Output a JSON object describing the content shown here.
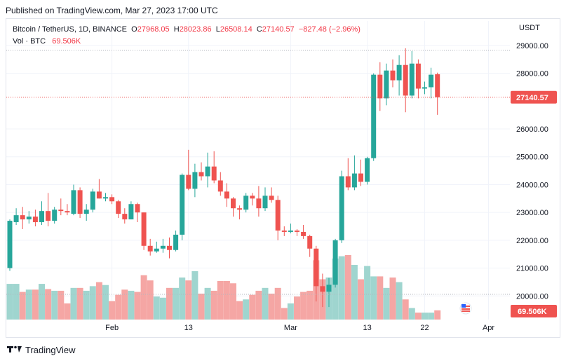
{
  "header": {
    "published": "Published on TradingView.com, Mar 27, 2023 17:00 UTC"
  },
  "legend": {
    "symbol": "Bitcoin / TetherUS, 1D, BINANCE",
    "o_label": "O",
    "o_value": "27968.05",
    "h_label": "H",
    "h_value": "28023.86",
    "l_label": "L",
    "l_value": "26508.14",
    "c_label": "C",
    "c_value": "27140.57",
    "change": "−827.48 (−2.96%)",
    "vol_label": "Vol · BTC",
    "vol_value": "69.506K"
  },
  "axis": {
    "currency": "USDT"
  },
  "footer": {
    "brand": "TradingView"
  },
  "colors": {
    "up": "#26a69a",
    "down": "#ef5350",
    "up_vol": "#9fd5cf",
    "down_vol": "#f5a6a4",
    "price_line": "#ef5350",
    "grid": "#f0f3fa"
  },
  "chart_data": {
    "type": "candlestick",
    "x_tick_labels": [
      {
        "label": "Feb",
        "index": 16
      },
      {
        "label": "13",
        "index": 28
      },
      {
        "label": "Mar",
        "index": 44
      },
      {
        "label": "13",
        "index": 56
      },
      {
        "label": "22",
        "index": 65
      },
      {
        "label": "Apr",
        "index": 75
      }
    ],
    "y_ticks": [
      20000,
      21000,
      22000,
      23000,
      24000,
      25000,
      26000,
      28000,
      29000
    ],
    "y_tick_labels": [
      "20000.00",
      "21000.00",
      "22000.00",
      "23000.00",
      "24000.00",
      "25000.00",
      "26000.00",
      "28000.00",
      "29000.00"
    ],
    "ylim": [
      19150,
      29250
    ],
    "last_price": 27140.57,
    "last_price_label": "27140.57",
    "last_volume_label": "69.506K",
    "candles": [
      {
        "o": 21000,
        "h": 22750,
        "l": 20900,
        "c": 22700,
        "v": 62
      },
      {
        "o": 22650,
        "h": 23150,
        "l": 22550,
        "c": 22900,
        "v": 62
      },
      {
        "o": 22900,
        "h": 23200,
        "l": 22400,
        "c": 22750,
        "v": 48
      },
      {
        "o": 22750,
        "h": 23050,
        "l": 22600,
        "c": 22850,
        "v": 52
      },
      {
        "o": 22850,
        "h": 23100,
        "l": 22500,
        "c": 22650,
        "v": 52
      },
      {
        "o": 22650,
        "h": 23400,
        "l": 22550,
        "c": 23050,
        "v": 62
      },
      {
        "o": 23050,
        "h": 23700,
        "l": 22500,
        "c": 22700,
        "v": 53
      },
      {
        "o": 22700,
        "h": 23200,
        "l": 22600,
        "c": 23100,
        "v": 50
      },
      {
        "o": 23100,
        "h": 23500,
        "l": 22900,
        "c": 23050,
        "v": 50
      },
      {
        "o": 23050,
        "h": 23300,
        "l": 22900,
        "c": 23000,
        "v": 28
      },
      {
        "o": 22950,
        "h": 24000,
        "l": 22900,
        "c": 23800,
        "v": 55
      },
      {
        "o": 23800,
        "h": 23900,
        "l": 22800,
        "c": 22950,
        "v": 55
      },
      {
        "o": 22950,
        "h": 23300,
        "l": 22700,
        "c": 23100,
        "v": 50
      },
      {
        "o": 23100,
        "h": 23850,
        "l": 23000,
        "c": 23750,
        "v": 58
      },
      {
        "o": 23750,
        "h": 24200,
        "l": 23500,
        "c": 23500,
        "v": 65
      },
      {
        "o": 23500,
        "h": 23700,
        "l": 23400,
        "c": 23550,
        "v": 60
      },
      {
        "o": 23550,
        "h": 23650,
        "l": 23300,
        "c": 23400,
        "v": 32
      },
      {
        "o": 23400,
        "h": 23450,
        "l": 22800,
        "c": 22950,
        "v": 43
      },
      {
        "o": 22950,
        "h": 23150,
        "l": 22600,
        "c": 22750,
        "v": 52
      },
      {
        "o": 22750,
        "h": 23400,
        "l": 22750,
        "c": 23300,
        "v": 50
      },
      {
        "o": 23300,
        "h": 23350,
        "l": 22650,
        "c": 23000,
        "v": 48
      },
      {
        "o": 23000,
        "h": 23000,
        "l": 21650,
        "c": 21800,
        "v": 77
      },
      {
        "o": 21800,
        "h": 22050,
        "l": 21450,
        "c": 21600,
        "v": 68
      },
      {
        "o": 21600,
        "h": 21950,
        "l": 21550,
        "c": 21700,
        "v": 40
      },
      {
        "o": 21700,
        "h": 22050,
        "l": 21550,
        "c": 21800,
        "v": 38
      },
      {
        "o": 21800,
        "h": 22100,
        "l": 21350,
        "c": 21650,
        "v": 55
      },
      {
        "o": 21650,
        "h": 22350,
        "l": 21600,
        "c": 22200,
        "v": 55
      },
      {
        "o": 22200,
        "h": 24400,
        "l": 22000,
        "c": 24350,
        "v": 73
      },
      {
        "o": 24350,
        "h": 25250,
        "l": 23800,
        "c": 23850,
        "v": 68
      },
      {
        "o": 23850,
        "h": 24750,
        "l": 23550,
        "c": 24450,
        "v": 84
      },
      {
        "o": 24450,
        "h": 24800,
        "l": 24150,
        "c": 24300,
        "v": 45
      },
      {
        "o": 24300,
        "h": 25150,
        "l": 23900,
        "c": 24650,
        "v": 55
      },
      {
        "o": 24650,
        "h": 25200,
        "l": 24050,
        "c": 24150,
        "v": 50
      },
      {
        "o": 24150,
        "h": 24450,
        "l": 23600,
        "c": 23750,
        "v": 67
      },
      {
        "o": 23750,
        "h": 24050,
        "l": 23200,
        "c": 23500,
        "v": 67
      },
      {
        "o": 23500,
        "h": 23550,
        "l": 22850,
        "c": 23150,
        "v": 63
      },
      {
        "o": 23150,
        "h": 23250,
        "l": 22750,
        "c": 23100,
        "v": 32
      },
      {
        "o": 23100,
        "h": 23700,
        "l": 23000,
        "c": 23600,
        "v": 35
      },
      {
        "o": 23600,
        "h": 23700,
        "l": 23250,
        "c": 23500,
        "v": 43
      },
      {
        "o": 23500,
        "h": 23950,
        "l": 22850,
        "c": 23150,
        "v": 50
      },
      {
        "o": 23150,
        "h": 23900,
        "l": 23050,
        "c": 23600,
        "v": 55
      },
      {
        "o": 23600,
        "h": 23900,
        "l": 23350,
        "c": 23450,
        "v": 45
      },
      {
        "o": 23450,
        "h": 23600,
        "l": 22000,
        "c": 22350,
        "v": 55
      },
      {
        "o": 22350,
        "h": 22500,
        "l": 22150,
        "c": 22300,
        "v": 20
      },
      {
        "o": 22300,
        "h": 22600,
        "l": 22250,
        "c": 22350,
        "v": 28
      },
      {
        "o": 22350,
        "h": 22400,
        "l": 22150,
        "c": 22300,
        "v": 40
      },
      {
        "o": 22300,
        "h": 22550,
        "l": 22050,
        "c": 22150,
        "v": 48
      },
      {
        "o": 22150,
        "h": 22200,
        "l": 21400,
        "c": 21700,
        "v": 50
      },
      {
        "o": 21700,
        "h": 21800,
        "l": 19800,
        "c": 20350,
        "v": 103
      },
      {
        "o": 20350,
        "h": 20800,
        "l": 19600,
        "c": 20150,
        "v": 70
      },
      {
        "o": 20150,
        "h": 20650,
        "l": 19600,
        "c": 20400,
        "v": 73
      },
      {
        "o": 20400,
        "h": 22050,
        "l": 20300,
        "c": 22000,
        "v": 106
      },
      {
        "o": 22000,
        "h": 24500,
        "l": 21900,
        "c": 24300,
        "v": 110
      },
      {
        "o": 24300,
        "h": 24950,
        "l": 23800,
        "c": 23900,
        "v": 112
      },
      {
        "o": 23900,
        "h": 25050,
        "l": 23800,
        "c": 24400,
        "v": 95
      },
      {
        "o": 24400,
        "h": 24900,
        "l": 23950,
        "c": 24100,
        "v": 70
      },
      {
        "o": 24100,
        "h": 25000,
        "l": 24000,
        "c": 24950,
        "v": 93
      },
      {
        "o": 24950,
        "h": 28000,
        "l": 24850,
        "c": 27950,
        "v": 75
      },
      {
        "o": 27950,
        "h": 28400,
        "l": 26650,
        "c": 27100,
        "v": 75
      },
      {
        "o": 27100,
        "h": 28350,
        "l": 26850,
        "c": 28100,
        "v": 55
      },
      {
        "o": 28100,
        "h": 28500,
        "l": 27500,
        "c": 27750,
        "v": 73
      },
      {
        "o": 27750,
        "h": 28650,
        "l": 27200,
        "c": 28300,
        "v": 65
      },
      {
        "o": 28300,
        "h": 28900,
        "l": 26600,
        "c": 27200,
        "v": 35
      },
      {
        "o": 27200,
        "h": 28800,
        "l": 27100,
        "c": 28350,
        "v": 20
      },
      {
        "o": 28350,
        "h": 28500,
        "l": 27100,
        "c": 27450,
        "v": 12
      },
      {
        "o": 27450,
        "h": 27700,
        "l": 27250,
        "c": 27500,
        "v": 12
      },
      {
        "o": 27500,
        "h": 28200,
        "l": 27100,
        "c": 27950,
        "v": 12
      },
      {
        "o": 27968,
        "h": 28024,
        "l": 26508,
        "c": 27140,
        "v": 16
      }
    ]
  }
}
